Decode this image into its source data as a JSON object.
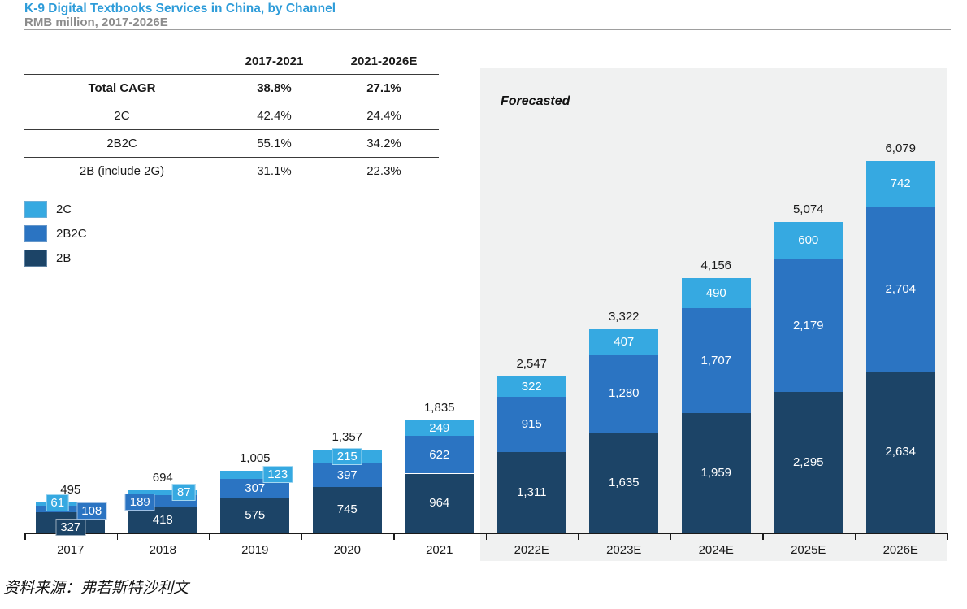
{
  "header": {
    "title": "K-9 Digital Textbooks Services in China, by Channel",
    "subtitle": "RMB million, 2017-2026E"
  },
  "cagr_table": {
    "col_headers": [
      "2017-2021",
      "2021-2026E"
    ],
    "rows": [
      {
        "label": "Total CAGR",
        "v1": "38.8%",
        "v2": "27.1%"
      },
      {
        "label": "2C",
        "v1": "42.4%",
        "v2": "24.4%"
      },
      {
        "label": "2B2C",
        "v1": "55.1%",
        "v2": "34.2%"
      },
      {
        "label": "2B (include 2G)",
        "v1": "31.1%",
        "v2": "22.3%"
      }
    ]
  },
  "legend": [
    {
      "label": "2C",
      "color": "#36A9E1"
    },
    {
      "label": "2B2C",
      "color": "#2B74C2"
    },
    {
      "label": "2B",
      "color": "#1C4467"
    }
  ],
  "forecast_label": "Forecasted",
  "source": "资料来源：弗若斯特沙利文",
  "chart_data": {
    "type": "bar",
    "stacked": true,
    "title": "K-9 Digital Textbooks Services in China, by Channel",
    "unit": "RMB million",
    "xlabel": "",
    "ylabel": "RMB million",
    "grid": false,
    "legend_position": "upper-left",
    "categories": [
      "2017",
      "2018",
      "2019",
      "2020",
      "2021",
      "2022E",
      "2023E",
      "2024E",
      "2025E",
      "2026E"
    ],
    "series": [
      {
        "name": "2B",
        "color": "#1C4467",
        "values": [
          327,
          418,
          575,
          745,
          964,
          1311,
          1635,
          1959,
          2295,
          2634
        ]
      },
      {
        "name": "2B2C",
        "color": "#2B74C2",
        "values": [
          108,
          189,
          307,
          397,
          622,
          915,
          1280,
          1707,
          2179,
          2704
        ]
      },
      {
        "name": "2C",
        "color": "#36A9E1",
        "values": [
          61,
          87,
          123,
          215,
          249,
          322,
          407,
          490,
          600,
          742
        ]
      }
    ],
    "totals": [
      495,
      694,
      1005,
      1357,
      1835,
      2547,
      3322,
      4156,
      5074,
      6079
    ],
    "forecast_start_index": 5,
    "forecast_region_label": "Forecasted"
  }
}
